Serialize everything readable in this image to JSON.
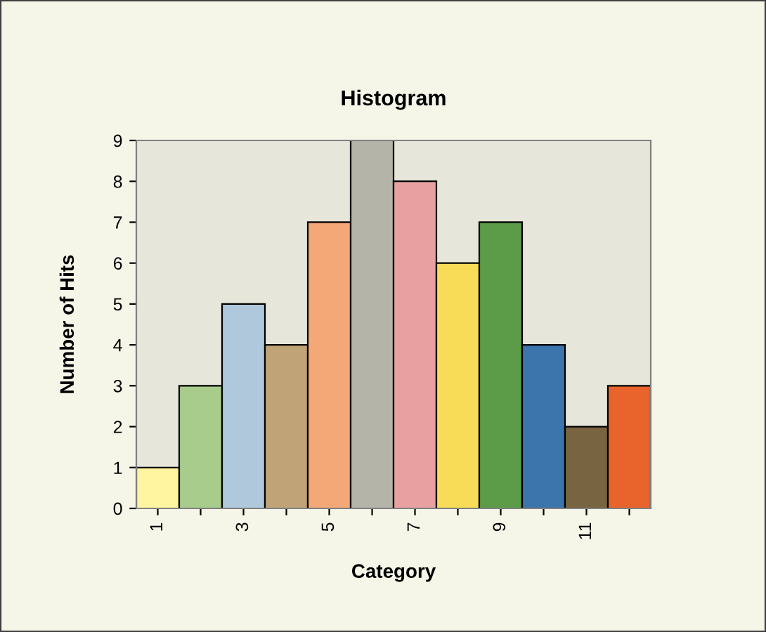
{
  "chart_data": {
    "type": "bar",
    "title": "Histogram",
    "xlabel": "Category",
    "ylabel": "Number of Hits",
    "categories": [
      "1",
      null,
      "3",
      null,
      "5",
      null,
      "7",
      null,
      "9",
      null,
      "11",
      null
    ],
    "values": [
      1,
      3,
      5,
      4,
      7,
      9,
      8,
      6,
      7,
      4,
      2,
      3
    ],
    "colors": [
      "#fff5a0",
      "#a8cc8c",
      "#b0c8dc",
      "#c0a478",
      "#f4a878",
      "#b4b4a8",
      "#e8a0a0",
      "#f8dc58",
      "#5c9c48",
      "#3c74ac",
      "#786440",
      "#e8642c"
    ],
    "ylim": [
      0,
      9
    ],
    "yticks": [
      0,
      1,
      2,
      3,
      4,
      5,
      6,
      7,
      8,
      9
    ],
    "grid": false,
    "legend": false
  }
}
